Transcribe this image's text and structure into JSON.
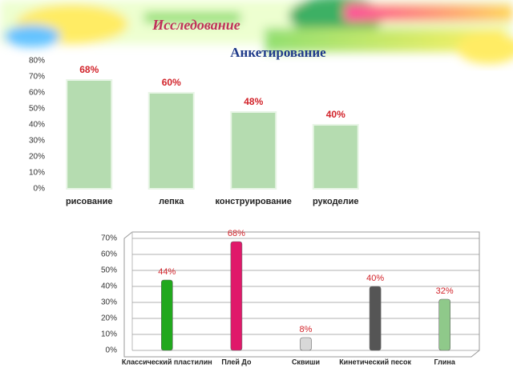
{
  "header": {
    "title": "Исследование",
    "subtitle": "Анкетирование"
  },
  "chart_data": [
    {
      "type": "bar",
      "categories": [
        "рисование",
        "лепка",
        "конструирование",
        "рукоделие"
      ],
      "values": [
        68,
        60,
        48,
        40
      ],
      "value_labels": [
        "68%",
        "60%",
        "48%",
        "40%"
      ],
      "color": "#b5dcb0",
      "grid": false,
      "ylim": [
        0,
        80
      ],
      "yticks": [
        {
          "value": 0,
          "label": "0%"
        },
        {
          "value": 10,
          "label": "10%"
        },
        {
          "value": 20,
          "label": "20%"
        },
        {
          "value": 30,
          "label": "30%"
        },
        {
          "value": 40,
          "label": "40%"
        },
        {
          "value": 50,
          "label": "50%"
        },
        {
          "value": 60,
          "label": "60%"
        },
        {
          "value": 70,
          "label": "70%"
        },
        {
          "value": 80,
          "label": "80%"
        }
      ]
    },
    {
      "type": "bar",
      "categories": [
        "Классический пластилин",
        "Плей До",
        "Сквиши",
        "Кинетический песок",
        "Глина"
      ],
      "values": [
        44,
        68,
        8,
        40,
        32
      ],
      "value_labels": [
        "44%",
        "68%",
        "8%",
        "40%",
        "32%"
      ],
      "colors": [
        "#22a81e",
        "#e0186a",
        "#d8d8d8",
        "#555555",
        "#8fc98a"
      ],
      "grid": true,
      "ylim": [
        0,
        70
      ],
      "yticks": [
        {
          "value": 0,
          "label": "0%"
        },
        {
          "value": 10,
          "label": "10%"
        },
        {
          "value": 20,
          "label": "20%"
        },
        {
          "value": 30,
          "label": "30%"
        },
        {
          "value": 40,
          "label": "40%"
        },
        {
          "value": 50,
          "label": "50%"
        },
        {
          "value": 60,
          "label": "60%"
        },
        {
          "value": 70,
          "label": "70%"
        }
      ]
    }
  ]
}
